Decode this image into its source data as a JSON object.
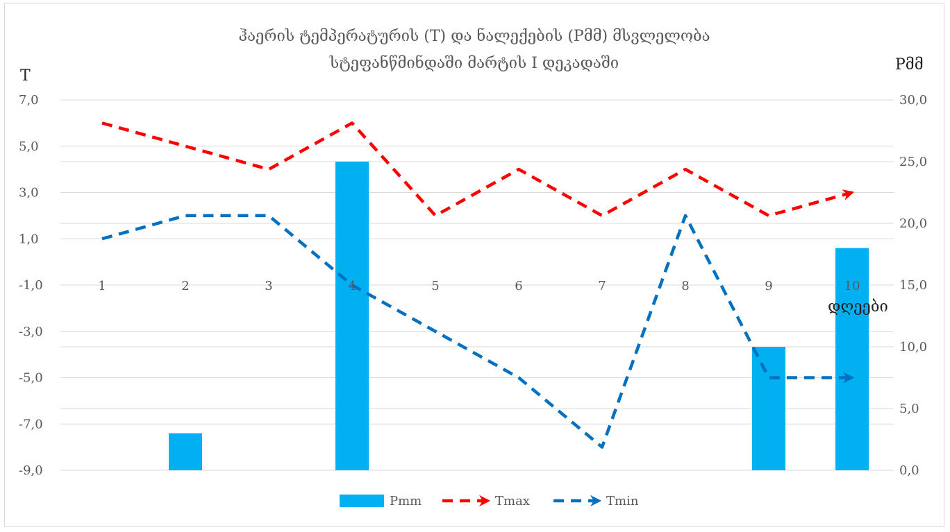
{
  "chart_data": {
    "type": "bar",
    "title_line1": "ჰაერის ტემპერატურის (T) და ნალექების (Pმმ)  მსვლელობა",
    "title_line2": "სტეფანწმინდაში  მარტის I დეკადაში",
    "ylabel_left": "T",
    "ylabel_right": "Pმმ",
    "xlabel": "დღეები",
    "categories": [
      "1",
      "2",
      "3",
      "4",
      "5",
      "6",
      "7",
      "8",
      "9",
      "10"
    ],
    "left_axis": {
      "min": -9,
      "max": 7,
      "ticks": [
        "7,0",
        "5,0",
        "3,0",
        "1,0",
        "-1,0",
        "-3,0",
        "-5,0",
        "-7,0",
        "-9,0"
      ],
      "tick_values": [
        7,
        5,
        3,
        1,
        -1,
        -3,
        -5,
        -7,
        -9
      ]
    },
    "right_axis": {
      "min": 0,
      "max": 30,
      "ticks": [
        "30,0",
        "25,0",
        "20,0",
        "15,0",
        "10,0",
        "5,0",
        "0,0"
      ],
      "tick_values": [
        30,
        25,
        20,
        15,
        10,
        5,
        0
      ]
    },
    "series": [
      {
        "name": "Pmm",
        "kind": "bar",
        "axis": "right",
        "color": "#00b0f0",
        "values": [
          0,
          3,
          0,
          25,
          0,
          0,
          0,
          0,
          10,
          18
        ]
      },
      {
        "name": "Tmax",
        "kind": "line",
        "axis": "left",
        "color": "#ff0000",
        "values": [
          6,
          5,
          4,
          6,
          2,
          4,
          2,
          4,
          2,
          3
        ]
      },
      {
        "name": "Tmin",
        "kind": "line",
        "axis": "left",
        "color": "#0070c0",
        "values": [
          1,
          2,
          2,
          -1,
          -3,
          -5,
          -8,
          2,
          -5,
          -5
        ]
      }
    ],
    "grid": true,
    "legend_position": "bottom"
  }
}
